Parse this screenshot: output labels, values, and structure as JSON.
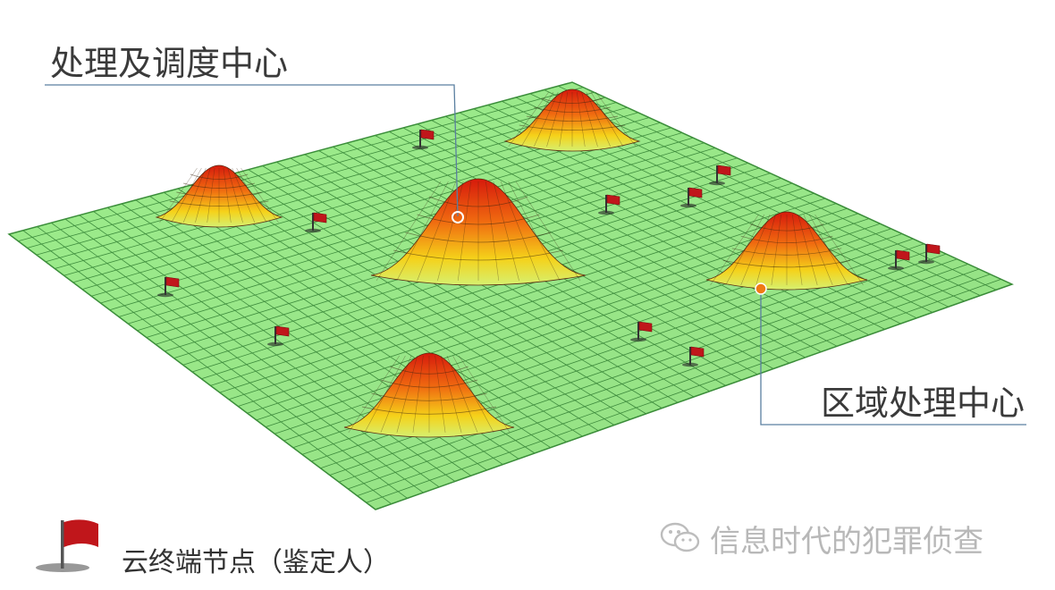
{
  "labels": {
    "processing_center": "处理及调度中心",
    "regional_center": "区域处理中心"
  },
  "legend": {
    "icon": "red-flag-icon",
    "text": "云终端节点（鉴定人）"
  },
  "watermark": {
    "icon": "wechat-icon",
    "text": "信息时代的犯罪侦查"
  },
  "colors": {
    "grid_fill": "#9ded8c",
    "grid_line": "#3b8f3a",
    "peak_top": "#e02010",
    "peak_mid": "#f07a10",
    "peak_base": "#f2e21c",
    "flag": "#c0161b",
    "leader_line": "#5a7fa0",
    "marker_hollow": "#ffffff",
    "marker_orange": "#f07a14"
  }
}
